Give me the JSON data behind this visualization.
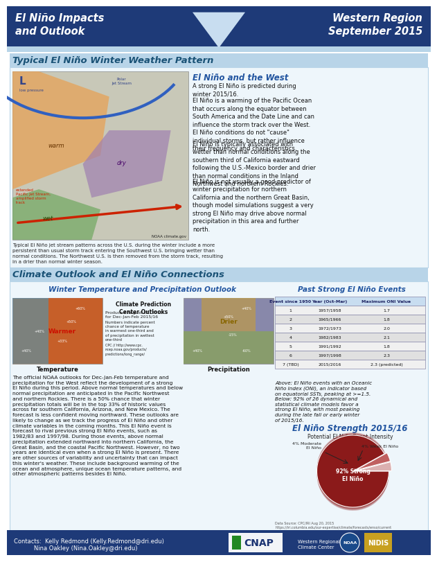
{
  "title_left": "El Niño Impacts\nand Outlook",
  "title_right": "Western Region\nSeptember 2015",
  "header_bg": "#1e3a78",
  "light_blue": "#b8d4e8",
  "mid_blue": "#2255a0",
  "section_title_color": "#1a5276",
  "section1_title": "Typical El Niño Winter Weather Pattern",
  "section2_title": "Climate Outlook and El Niño Connections",
  "nino_west_title": "El Niño and the West",
  "nino_west_paragraphs": [
    "A strong El Niño is predicted during winter 2015/16.",
    "El Niño is a warming of the Pacific Ocean that occurs along the equator between South America and the Date Line and can influence the storm track over the West. El Niño conditions do not \"cause\" individual storms, but rather influence their frequency and characteristics.",
    "El Niño is typically associated with wetter than normal conditions along the southern third of California eastward following the U.S.-Mexico border and drier than normal conditions in the Inland Northwest and northern Rockies.",
    "El Niño is not usually a good predictor of winter precipitation for northern California and the northern Great Basin, though model simulations suggest a very strong El Niño may drive above normal precipitation in this area and further north."
  ],
  "map_caption": "Typical El Niño jet stream patterns across the U.S. during the winter include a more\npersistent than usual storm track entering the Southwest U.S. bringing wetter than\nnormal conditions. The Northwest U.S. is then removed from the storm track, resulting\nin a drier than normal winter season.",
  "noaa_credit": "NOAA climate.gov",
  "winter_outlook_title": "Winter Temperature and Precipitation Outlook",
  "cpc_title": "Climate Prediction\nCenter Outlooks",
  "cpc_date": "Produced August 20, 2015\nfor Dec-Jan-Feb 2015/16",
  "cpc_note": "Numbers indicate percent\nchance of temperature\nin warmest one-third and\nof precipitation in wettest\none-third",
  "cpc_url": "CPC // http://www.cpc.\nncep.noaa.gov/products/\npredictions/long_range/",
  "temp_label": "Temperature",
  "prec_label": "Precipitation",
  "warmer_label": "Warmer",
  "drier_label": "Drier",
  "past_events_title": "Past Strong El Niño Events",
  "past_events_header": [
    "Event since 1950",
    "Year (Oct-Mar)",
    "Maximum ONI Value"
  ],
  "past_events_rows": [
    [
      "1",
      "1957/1958",
      "1.7"
    ],
    [
      "2",
      "1965/1966",
      "1.8"
    ],
    [
      "3",
      "1972/1973",
      "2.0"
    ],
    [
      "4",
      "1982/1983",
      "2.1"
    ],
    [
      "5",
      "1991/1992",
      "1.8"
    ],
    [
      "6",
      "1997/1998",
      "2.3"
    ],
    [
      "7 (TBD)",
      "2015/2016",
      "2.3 (predicted)"
    ]
  ],
  "above_text": "Above: El Niño events with an Oceanic Niño Index (ONI), an indicator based on equatorial SSTs, peaking at >=1.5. Below: 92% of 26 dynamical and statistical climate models favor a strong El Niño, with most peaking during the late fall or early winter of 2015/16.",
  "strength_title": "El Niño Strength 2015/16",
  "pie_chart_title": "Potential El Niño Event Intensity",
  "pie_values": [
    92,
    4,
    4
  ],
  "pie_labels": [
    "92% Strong\nEl Niño",
    "4% Moderate\nEl Niño",
    "4% Weak El Niño"
  ],
  "pie_colors": [
    "#8b1a1a",
    "#c06060",
    "#dbb0b0"
  ],
  "data_source": "Data Source: CPC/IRI Aug 20, 2015\nhttps://iri.columbia.edu/our-expertise/climate/forecasts/enso/current",
  "outlook_body": "The official NOAA outlooks for Dec-Jan-Feb temperature and precipitation for the West reflect the development of a strong El Niño during this period. Above normal temperatures and below normal precipitation are anticipated in the Pacific Northwest and northern Rockies. There is a 50% chance that winter precipitation totals will be in the top 33% of historic values across far southern California, Arizona, and New Mexico. The forecast is less confident moving northward. These outlooks are likely to change as we track the progress of El Niño and other climate variables in the coming months. This El Niño event is forecast to rival previous strong El Niño events, such as 1982/83 and 1997/98. During those events, above normal precipitation extended northward into northern California, the Great Basin, and the coastal Pacific Northwest. However, no two years are identical even when a strong El Niño is present. There are other sources of variability and uncertainty that can impact this winter's weather. These include background warming of the ocean and atmosphere, unique ocean temperature patterns, and other atmospheric patterns besides El Niño.",
  "footer_bg": "#1e3a78",
  "footer_text1": "Contacts:  Kelly Redmond (Kelly.Redmond@dri.edu)",
  "footer_text2": "           Nina Oakley (Nina.Oakley@dri.edu)",
  "footer_color": "#ffffff",
  "bg_color": "#ffffff",
  "content_bg": "#eef6fb",
  "table_header_bg": "#c8ddf0",
  "table_row1": "#f0f0f0",
  "table_row2": "#e0e0e0",
  "table_border": "#8888aa"
}
